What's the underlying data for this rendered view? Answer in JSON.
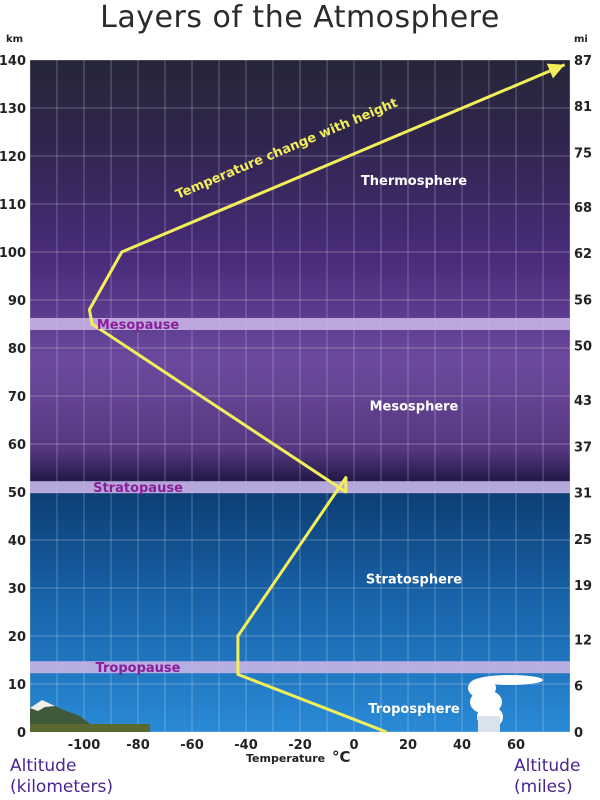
{
  "title": "Layers of the Atmosphere",
  "chart_data": {
    "type": "line",
    "km_unit": "km",
    "mi_unit": "mi",
    "km_ticks": [
      0,
      10,
      20,
      30,
      40,
      50,
      60,
      70,
      80,
      90,
      100,
      110,
      120,
      130,
      140
    ],
    "mi_ticks": [
      {
        "km": 0,
        "label": "0"
      },
      {
        "km": 9.7,
        "label": "6"
      },
      {
        "km": 19.3,
        "label": "12"
      },
      {
        "km": 30.6,
        "label": "19"
      },
      {
        "km": 40.2,
        "label": "25"
      },
      {
        "km": 49.9,
        "label": "31"
      },
      {
        "km": 59.5,
        "label": "37"
      },
      {
        "km": 69.2,
        "label": "43"
      },
      {
        "km": 80.5,
        "label": "50"
      },
      {
        "km": 90.1,
        "label": "56"
      },
      {
        "km": 99.8,
        "label": "62"
      },
      {
        "km": 109.4,
        "label": "68"
      },
      {
        "km": 120.7,
        "label": "75"
      },
      {
        "km": 130.4,
        "label": "81"
      },
      {
        "km": 140.0,
        "label": "87"
      }
    ],
    "temp_ticks": [
      -100,
      -80,
      -60,
      -40,
      -20,
      0,
      20,
      40,
      60
    ],
    "xlim": [
      -120,
      80
    ],
    "ylim": [
      0,
      140
    ],
    "xlabel": "Temperature",
    "xlabel_unit": "°C",
    "temperature_profile": [
      {
        "temp": 12,
        "km": 0
      },
      {
        "temp": -43,
        "km": 12
      },
      {
        "temp": -43,
        "km": 20
      },
      {
        "temp": -3,
        "km": 53
      },
      {
        "temp": -3,
        "km": 50
      },
      {
        "temp": -97,
        "km": 85
      },
      {
        "temp": -98,
        "km": 88
      },
      {
        "temp": -86,
        "km": 100
      },
      {
        "temp": 78,
        "km": 139
      }
    ],
    "curve_label": "Temperature change with height",
    "layers": [
      {
        "name": "Thermosphere",
        "temp": 0,
        "km": 115
      },
      {
        "name": "Mesosphere",
        "temp": 0,
        "km": 68
      },
      {
        "name": "Stratosphere",
        "temp": 0,
        "km": 32
      },
      {
        "name": "Troposphere",
        "temp": 0,
        "km": 5
      }
    ],
    "pauses": [
      {
        "name": "Mesopause",
        "km": 85,
        "label_temp": -80
      },
      {
        "name": "Stratopause",
        "km": 51,
        "label_temp": -80
      },
      {
        "name": "Tropopause",
        "km": 13.5,
        "label_temp": -80
      }
    ],
    "grid": true,
    "colors": {
      "curve": "#f3ef5a",
      "pause_band": "#c8b4e6",
      "pause_text": "#8a1d9a",
      "upper_sky": "#3a2466",
      "lower_sky": "#1a73c0"
    }
  },
  "labels": {
    "left_line1": "Altitude",
    "left_line2": "(kilometers)",
    "right_line1": "Altitude",
    "right_line2": "(miles)"
  }
}
